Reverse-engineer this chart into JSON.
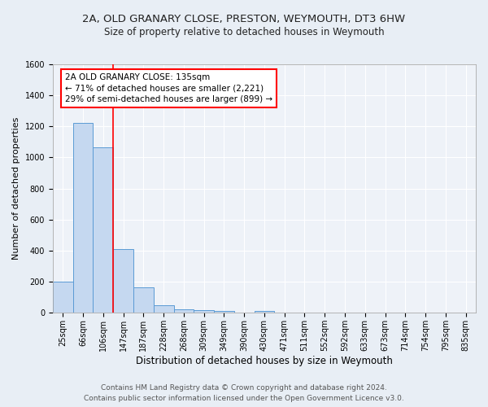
{
  "title_line1": "2A, OLD GRANARY CLOSE, PRESTON, WEYMOUTH, DT3 6HW",
  "title_line2": "Size of property relative to detached houses in Weymouth",
  "xlabel": "Distribution of detached houses by size in Weymouth",
  "ylabel": "Number of detached properties",
  "categories": [
    "25sqm",
    "66sqm",
    "106sqm",
    "147sqm",
    "187sqm",
    "228sqm",
    "268sqm",
    "309sqm",
    "349sqm",
    "390sqm",
    "430sqm",
    "471sqm",
    "511sqm",
    "552sqm",
    "592sqm",
    "633sqm",
    "673sqm",
    "714sqm",
    "754sqm",
    "795sqm",
    "835sqm"
  ],
  "values": [
    200,
    1225,
    1065,
    410,
    163,
    50,
    25,
    18,
    12,
    0,
    12,
    0,
    0,
    0,
    0,
    0,
    0,
    0,
    0,
    0,
    0
  ],
  "bar_color": "#c5d8f0",
  "bar_edge_color": "#5b9bd5",
  "red_line_x": 2.5,
  "annotation_text": "2A OLD GRANARY CLOSE: 135sqm\n← 71% of detached houses are smaller (2,221)\n29% of semi-detached houses are larger (899) →",
  "annotation_box_color": "white",
  "annotation_box_edge_color": "red",
  "ylim": [
    0,
    1600
  ],
  "yticks": [
    0,
    200,
    400,
    600,
    800,
    1000,
    1200,
    1400,
    1600
  ],
  "bg_color": "#e8eef5",
  "plot_bg_color": "#eef2f8",
  "footer_line1": "Contains HM Land Registry data © Crown copyright and database right 2024.",
  "footer_line2": "Contains public sector information licensed under the Open Government Licence v3.0.",
  "title_fontsize": 9.5,
  "subtitle_fontsize": 8.5,
  "xlabel_fontsize": 8.5,
  "ylabel_fontsize": 8,
  "tick_fontsize": 7,
  "footer_fontsize": 6.5,
  "annotation_fontsize": 7.5
}
